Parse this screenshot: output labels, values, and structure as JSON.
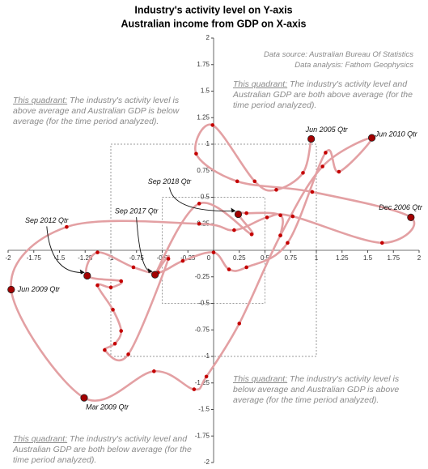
{
  "chart_data": {
    "type": "connected-scatter",
    "title": [
      "Industry's activity level on Y-axis",
      "Australian income from GDP on X-axis"
    ],
    "source": [
      "Data source: Australian Bureau Of Statistics",
      "Data analysis: Fathom Geophysics"
    ],
    "xlim": [
      -2,
      2
    ],
    "ylim": [
      -2,
      2
    ],
    "xticks": [
      -2,
      -1.75,
      -1.5,
      -1.25,
      -1,
      -0.75,
      -0.5,
      -0.25,
      0,
      0.25,
      0.5,
      0.75,
      1,
      1.25,
      1.5,
      1.75,
      2
    ],
    "yticks": [
      -2,
      -1.75,
      -1.5,
      -1.25,
      -1,
      -0.75,
      -0.5,
      -0.25,
      0.25,
      0.5,
      0.75,
      1,
      1.25,
      1.5,
      1.75,
      2
    ],
    "reference_boxes": [
      1,
      0.5
    ],
    "series": [
      {
        "color": "#e3a0a3",
        "point_color": "#c40000",
        "x": [
          0.95,
          0.87,
          0.61,
          0.4,
          -0.01,
          -0.17,
          0.23,
          0.96,
          1.92,
          1.64,
          0.77,
          0.52,
          0.2,
          -0.14,
          -1.43,
          -1.97,
          -1.26,
          -0.58,
          -0.19,
          -0.07,
          0.25,
          0.65,
          1.06,
          1.54,
          1.22,
          1.09,
          0.72,
          0.32,
          0.15,
          0.0,
          -0.3,
          -0.54,
          -0.78,
          -1.13,
          -1.23,
          -0.9,
          -1.0,
          -1.13,
          -0.98,
          -0.9,
          -0.96,
          -1.06,
          -0.83,
          -0.44,
          -0.57,
          -0.14,
          0.37,
          0.24,
          0.32,
          0.65,
          0.65
        ],
        "values": [
          1.05,
          0.73,
          0.57,
          0.65,
          1.18,
          0.91,
          0.65,
          0.55,
          0.31,
          0.07,
          0.32,
          0.31,
          0.19,
          0.25,
          0.22,
          -0.37,
          -1.39,
          -1.14,
          -1.31,
          -1.19,
          -0.69,
          0.14,
          0.79,
          1.06,
          0.74,
          0.92,
          0.07,
          -0.16,
          -0.18,
          -0.02,
          -0.1,
          -0.21,
          -0.16,
          -0.02,
          -0.24,
          -0.29,
          -0.35,
          -0.33,
          -0.56,
          -0.76,
          -0.88,
          -0.94,
          -0.98,
          -0.08,
          -0.23,
          0.44,
          0.15,
          0.34,
          0.35,
          0.33,
          0.14
        ]
      }
    ],
    "annotations": [
      {
        "text": "Jun 2005 Qtr",
        "x": 0.95,
        "y": 1.05
      },
      {
        "text": "Jun 2010 Qtr",
        "x": 1.54,
        "y": 1.06
      },
      {
        "text": "Dec 2006 Qtr",
        "x": 1.92,
        "y": 0.31
      },
      {
        "text": "Jun 2009 Qtr",
        "x": -1.97,
        "y": -0.37
      },
      {
        "text": "Mar 2009 Qtr",
        "x": -1.26,
        "y": -1.39
      },
      {
        "text": "Sep 2012 Qtr",
        "x": -1.23,
        "y": -0.24
      },
      {
        "text": "Sep 2017 Qtr",
        "x": -0.57,
        "y": -0.23
      },
      {
        "text": "Sep 2018 Qtr",
        "x": 0.24,
        "y": 0.34
      }
    ],
    "notes": [
      {
        "label": "This quadrant:",
        "text": "The industry's activity level is above average and Australian GDP is below average (for the time period analyzed)."
      },
      {
        "label": "This quadrant:",
        "text": "The industry's activity level and Australian GDP are both above average (for the time period analyzed)."
      },
      {
        "label": "This quadrant:",
        "text": "The industry's activity level is below average and Australian GDP is above average (for the time period analyzed)."
      },
      {
        "label": "This quadrant:",
        "text": "The industry's activity level and Australian GDP are both below average (for the time period analyzed)."
      }
    ]
  }
}
